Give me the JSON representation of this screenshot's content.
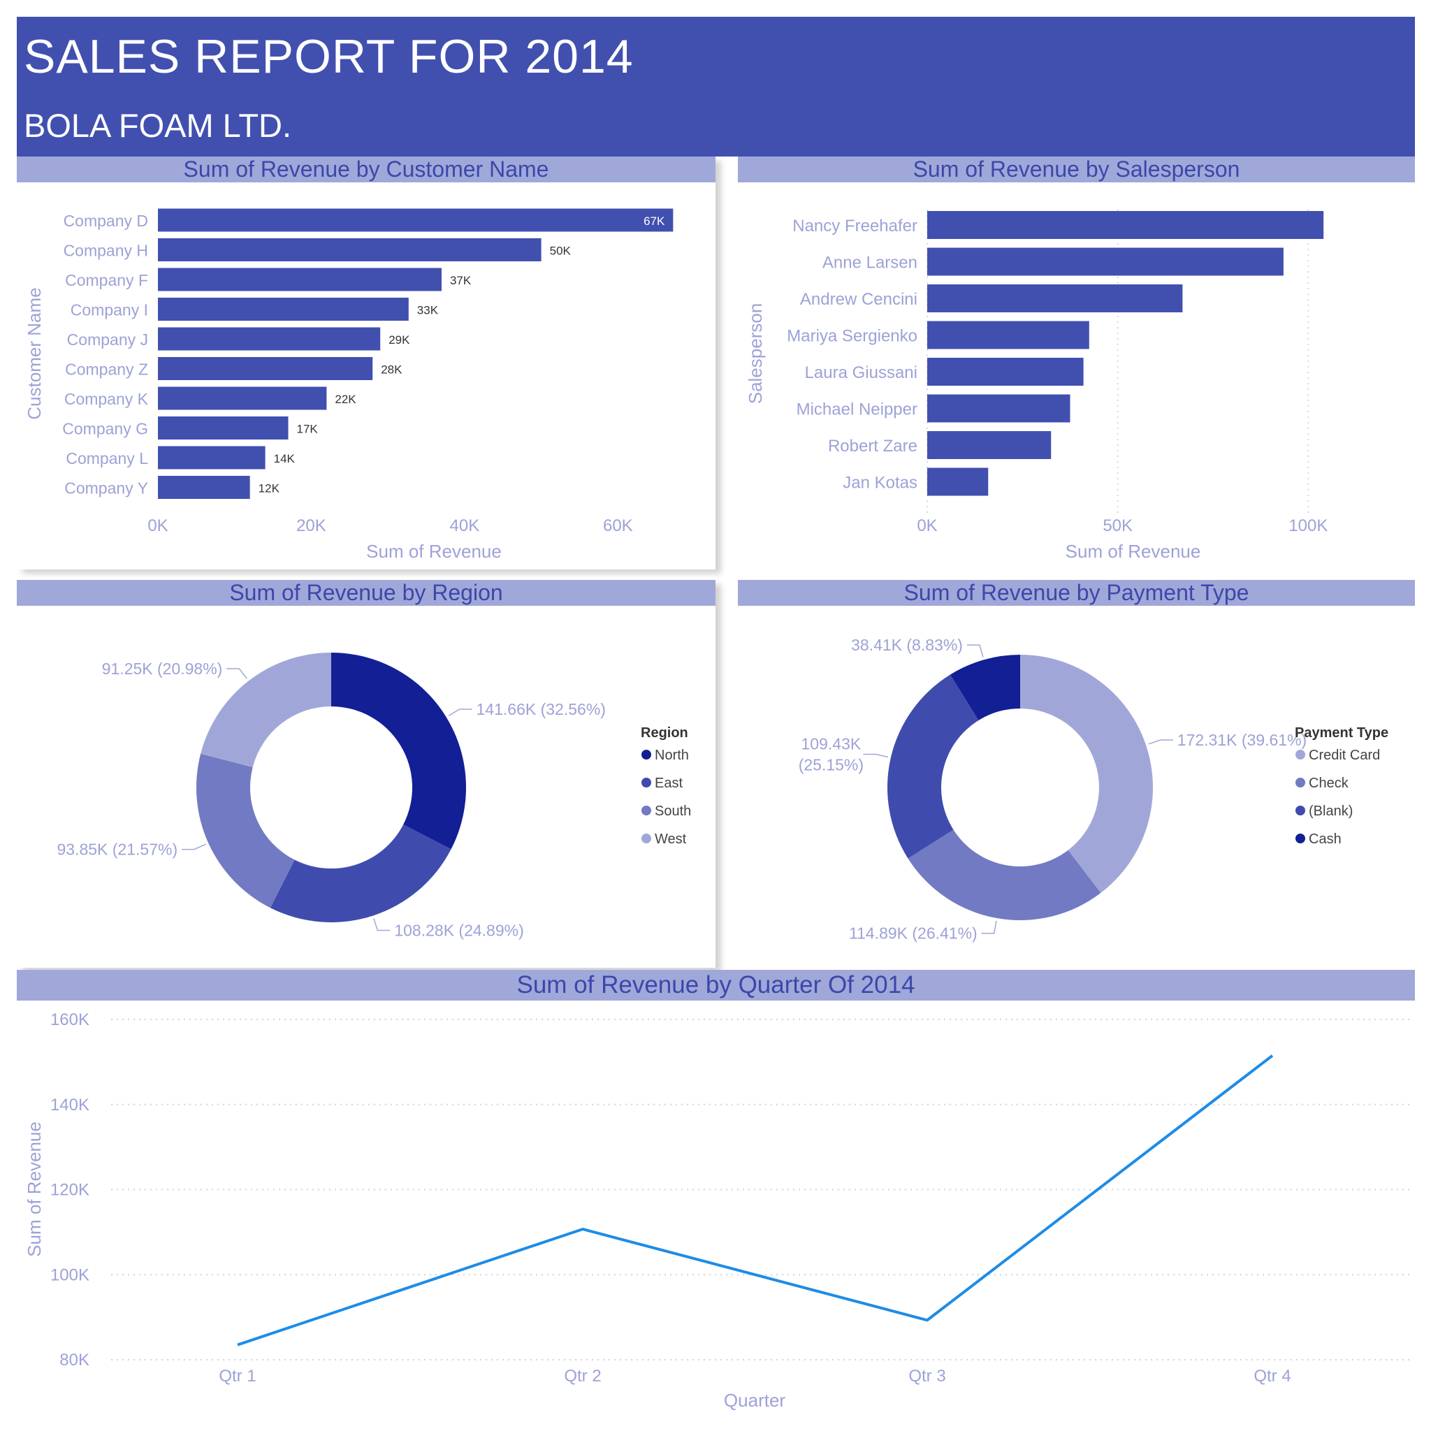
{
  "header": {
    "title": "SALES REPORT FOR 2014",
    "subtitle": "BOLA FOAM LTD.",
    "background": "#4150af"
  },
  "colors": {
    "bar": "#4150af",
    "panel_title_bg": "#a0a8da",
    "panel_title_text": "#3d47a8",
    "axis_text": "#9da2d6",
    "line": "#1e8ce6"
  },
  "chart_data": [
    {
      "type": "bar",
      "orientation": "horizontal",
      "title": "Sum of Revenue by Customer Name",
      "xlabel": "Sum of Revenue",
      "ylabel": "Customer Name",
      "categories": [
        "Company D",
        "Company H",
        "Company F",
        "Company I",
        "Company J",
        "Company Z",
        "Company K",
        "Company G",
        "Company L",
        "Company Y"
      ],
      "values": [
        67200,
        50000,
        37000,
        32700,
        29000,
        28000,
        22000,
        17000,
        14000,
        12000
      ],
      "data_labels": [
        "67K",
        "50K",
        "37K",
        "33K",
        "29K",
        "28K",
        "22K",
        "17K",
        "14K",
        "12K"
      ],
      "xlim": [
        0,
        72000
      ],
      "xticks": [
        0,
        20000,
        40000,
        60000
      ],
      "xtick_labels": [
        "0K",
        "20K",
        "40K",
        "60K"
      ],
      "grid": false
    },
    {
      "type": "bar",
      "orientation": "horizontal",
      "title": "Sum of Revenue by Salesperson",
      "xlabel": "Sum of Revenue",
      "ylabel": "Salesperson",
      "categories": [
        "Nancy Freehafer",
        "Anne Larsen",
        "Andrew Cencini",
        "Mariya Sergienko",
        "Laura Giussani",
        "Michael Neipper",
        "Robert Zare",
        "Jan Kotas"
      ],
      "values": [
        104000,
        93500,
        67000,
        42500,
        41000,
        37500,
        32500,
        16000
      ],
      "xlim": [
        0,
        108000
      ],
      "xticks": [
        0,
        50000,
        100000
      ],
      "xtick_labels": [
        "0K",
        "50K",
        "100K"
      ],
      "grid": true
    },
    {
      "type": "pie",
      "donut": true,
      "title": "Sum of Revenue by Region",
      "legend_title": "Region",
      "legend_position": "right",
      "labels": [
        "North",
        "East",
        "South",
        "West"
      ],
      "values": [
        141.66,
        108.28,
        93.85,
        91.25
      ],
      "data_labels": [
        "141.66K (32.56%)",
        "108.28K (24.89%)",
        "93.85K (21.57%)",
        "91.25K (20.98%)"
      ],
      "colors": [
        "#131f95",
        "#3f4cad",
        "#717ac3",
        "#a0a7d8"
      ]
    },
    {
      "type": "pie",
      "donut": true,
      "title": "Sum of Revenue by Payment Type",
      "legend_title": "Payment Type",
      "legend_position": "right",
      "labels": [
        "Credit Card",
        "Check",
        "(Blank)",
        "Cash"
      ],
      "values": [
        172.31,
        114.89,
        109.43,
        38.41
      ],
      "data_labels": [
        "172.31K (39.61%)",
        "114.89K (26.41%)",
        "109.43K\n(25.15%)",
        "38.41K (8.83%)"
      ],
      "colors": [
        "#a0a7d8",
        "#717ac3",
        "#3f4cad",
        "#131f95"
      ]
    },
    {
      "type": "line",
      "title": "Sum of Revenue by Quarter Of 2014",
      "xlabel": "Quarter",
      "ylabel": "Sum of Revenue",
      "categories": [
        "Qtr 1",
        "Qtr 2",
        "Qtr 3",
        "Qtr 4"
      ],
      "values": [
        83500,
        110700,
        89300,
        151500
      ],
      "ylim": [
        80000,
        160000
      ],
      "yticks": [
        80000,
        100000,
        120000,
        140000,
        160000
      ],
      "ytick_labels": [
        "80K",
        "100K",
        "120K",
        "140K",
        "160K"
      ],
      "grid": true
    }
  ]
}
